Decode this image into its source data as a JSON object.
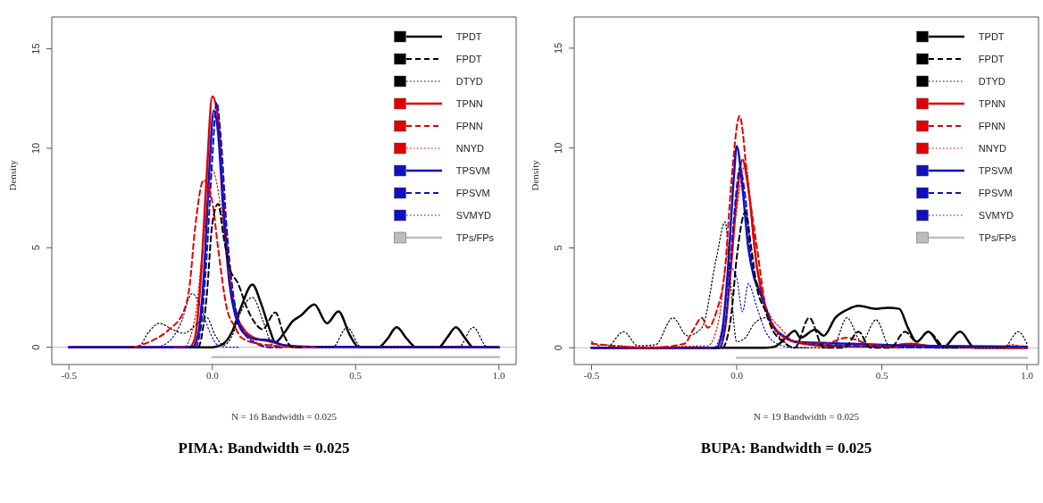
{
  "chart_data": [
    {
      "type": "line",
      "title": "PIMA: Bandwidth = 0.025",
      "xlabel": "N = 16  Bandwidth = 0.025",
      "ylabel": "Density",
      "xlim": [
        -0.56,
        1.06
      ],
      "ylim": [
        -0.87,
        16.6
      ],
      "xticks": [
        {
          "value": -0.5,
          "label": "-0.5"
        },
        {
          "value": 0,
          "label": "0.0"
        },
        {
          "value": 0.5,
          "label": "0.5"
        },
        {
          "value": 1,
          "label": "1.0"
        }
      ],
      "yticks": [
        0,
        5,
        10,
        15
      ],
      "grid": false,
      "legend": "top right",
      "ref_lines": [
        {
          "axis": "y",
          "value": 0,
          "label": null,
          "color": "#bdbdbd"
        }
      ],
      "series": [
        {
          "name": "TPDT",
          "color": "#000000",
          "line_style": "solid",
          "x": [
            -0.5,
            0,
            0.03,
            0.07,
            0.1,
            0.14,
            0.17,
            0.2,
            0.22,
            0.25,
            0.28,
            0.31,
            0.356,
            0.4,
            0.44,
            0.48,
            0.51,
            0.58,
            0.61,
            0.643,
            0.68,
            0.71,
            0.79,
            0.82,
            0.85,
            0.88,
            0.91,
            1.0
          ],
          "values": [
            0,
            0,
            0.1,
            0.8,
            2.0,
            3.15,
            2.2,
            0.9,
            0.25,
            0.7,
            1.3,
            1.6,
            2.15,
            1.2,
            1.8,
            0.6,
            0.02,
            0,
            0.4,
            1.0,
            0.4,
            0,
            0,
            0.5,
            1.0,
            0.5,
            0,
            0
          ]
        },
        {
          "name": "FPDT",
          "color": "#000000",
          "line_style": "dashed",
          "x": [
            -0.08,
            -0.05,
            -0.02,
            0,
            0.02,
            0.04,
            0.06,
            0.09,
            0.12,
            0.15,
            0.175,
            0.22,
            0.25,
            0.28,
            0.31
          ],
          "values": [
            0,
            0,
            2.5,
            6.2,
            7.2,
            5.5,
            4.0,
            3.2,
            2.0,
            1.2,
            0.9,
            1.75,
            0.6,
            0,
            0
          ]
        },
        {
          "name": "DTYD",
          "color": "#000000",
          "line_style": "dotted",
          "x": [
            -0.29,
            -0.26,
            -0.22,
            -0.185,
            -0.14,
            -0.1,
            -0.05,
            -0.02,
            0.01,
            0.04,
            0.07,
            0.1,
            0.14,
            0.18,
            0.21,
            0.24,
            0.42,
            0.47,
            0.52,
            0.86,
            0.91,
            0.96,
            0.99
          ],
          "values": [
            0,
            0,
            0.8,
            1.2,
            0.9,
            0.7,
            1.2,
            1.5,
            0.6,
            0.1,
            0.6,
            1.8,
            2.5,
            1.2,
            0.1,
            0,
            0,
            1.0,
            0,
            0,
            1.0,
            0,
            0
          ]
        },
        {
          "name": "TPNN",
          "color": "#e00000",
          "line_style": "solid",
          "x": [
            -0.5,
            -0.08,
            -0.06,
            -0.04,
            -0.02,
            0,
            0.02,
            0.04,
            0.06,
            0.08,
            0.11,
            0.15,
            0.2,
            0.25,
            0.3,
            1.0
          ],
          "values": [
            0,
            0,
            0.5,
            3.5,
            8.5,
            12.6,
            11.5,
            7,
            3.5,
            1.8,
            0.9,
            0.45,
            0.3,
            0.1,
            0.02,
            0
          ]
        },
        {
          "name": "FPNN",
          "color": "#e00000",
          "line_style": "dashed",
          "x": [
            -0.27,
            -0.25,
            -0.2,
            -0.15,
            -0.1,
            -0.08,
            -0.06,
            -0.03,
            0,
            0.02,
            0.05,
            0.08,
            0.1,
            0.15,
            0.2,
            0.3,
            0.36
          ],
          "values": [
            0,
            0.1,
            0.4,
            0.9,
            1.8,
            3.0,
            6.0,
            8.4,
            7.3,
            5.0,
            2.0,
            1.0,
            0.5,
            0.2,
            0.1,
            0,
            0
          ]
        },
        {
          "name": "NNYD",
          "color": "#e00000",
          "line_style": "dotted",
          "x": [
            -0.13,
            -0.1,
            -0.06,
            -0.03,
            0,
            0.03,
            0.06,
            0.09,
            0.12,
            0.16,
            0.2,
            0.24
          ],
          "values": [
            0,
            0,
            1.5,
            5.5,
            8.9,
            7.0,
            3.5,
            1.5,
            0.6,
            0.2,
            0,
            0
          ]
        },
        {
          "name": "TPSVM",
          "color": "#1010c0",
          "line_style": "solid",
          "x": [
            -0.5,
            -0.07,
            -0.05,
            -0.03,
            -0.01,
            0.005,
            0.02,
            0.04,
            0.06,
            0.08,
            0.1,
            0.13,
            0.15,
            0.2,
            0.25,
            0.35,
            1.0
          ],
          "values": [
            0,
            0,
            0.6,
            3.5,
            9.0,
            11.9,
            10.8,
            6.5,
            3.2,
            1.6,
            0.9,
            0.5,
            0.4,
            0.35,
            0.1,
            0.02,
            0
          ]
        },
        {
          "name": "FPSVM",
          "color": "#1010c0",
          "line_style": "dashed",
          "x": [
            -0.09,
            -0.06,
            -0.04,
            -0.02,
            0,
            0.015,
            0.03,
            0.05,
            0.07,
            0.1,
            0.15,
            0.2,
            0.24
          ],
          "values": [
            0,
            0,
            1.0,
            4.5,
            9.5,
            12.3,
            10.5,
            6.0,
            3.0,
            1.0,
            0.2,
            0,
            0
          ]
        },
        {
          "name": "SVMYD",
          "color": "#1010c0",
          "line_style": "dotted",
          "x": [
            -0.24,
            -0.2,
            -0.15,
            -0.11,
            -0.07,
            -0.04,
            -0.01,
            0.02,
            0.05,
            0.09
          ],
          "values": [
            0,
            0,
            0.3,
            1.2,
            2.7,
            2.0,
            0.8,
            0.1,
            0,
            0
          ]
        },
        {
          "name": "TPs/FPs",
          "color": "#bdbdbd",
          "line_style": "solid",
          "x": [
            0,
            1.0
          ],
          "values": [
            -0.5,
            -0.5
          ]
        }
      ]
    },
    {
      "type": "line",
      "title": "BUPA: Bandwidth = 0.025",
      "xlabel": "N = 19  Bandwidth = 0.025",
      "ylabel": "Density",
      "xlim": [
        -0.56,
        1.04
      ],
      "ylim": [
        -0.84,
        16.56
      ],
      "xticks": [
        {
          "value": -0.5,
          "label": "-0.5"
        },
        {
          "value": 0,
          "label": "0.0"
        },
        {
          "value": 0.5,
          "label": "0.5"
        },
        {
          "value": 1,
          "label": "1.0"
        }
      ],
      "yticks": [
        0,
        5,
        10,
        15
      ],
      "grid": false,
      "legend": "top right",
      "ref_lines": [
        {
          "axis": "y",
          "value": 0,
          "label": null,
          "color": "#bdbdbd"
        }
      ],
      "series": [
        {
          "name": "TPDT",
          "color": "#000000",
          "line_style": "solid",
          "x": [
            -0.5,
            0.1,
            0.13,
            0.17,
            0.2,
            0.22,
            0.27,
            0.3,
            0.34,
            0.38,
            0.42,
            0.48,
            0.52,
            0.56,
            0.59,
            0.62,
            0.66,
            0.71,
            0.77,
            0.82,
            1.0
          ],
          "values": [
            0,
            0,
            0.05,
            0.5,
            0.85,
            0.5,
            0.9,
            0.6,
            1.5,
            1.9,
            2.1,
            1.95,
            2.0,
            1.95,
            1.0,
            0.3,
            0.8,
            0,
            0.8,
            0,
            0
          ]
        },
        {
          "name": "FPDT",
          "color": "#000000",
          "line_style": "dashed",
          "x": [
            -0.08,
            -0.05,
            -0.02,
            0,
            0.03,
            0.05,
            0.07,
            0.1,
            0.12,
            0.16,
            0.2,
            0.25,
            0.3,
            0.37,
            0.42,
            0.46,
            0.53,
            0.58,
            0.62,
            0.66,
            0.72,
            0.76
          ],
          "values": [
            0,
            0,
            1.5,
            4.5,
            6.8,
            5.0,
            3.0,
            1.8,
            1.0,
            0.3,
            0,
            1.5,
            0,
            0,
            0.8,
            0,
            0,
            0.8,
            0.3,
            0.8,
            0,
            0
          ]
        },
        {
          "name": "DTYD",
          "color": "#000000",
          "line_style": "dotted",
          "x": [
            -0.5,
            -0.45,
            -0.39,
            -0.34,
            -0.28,
            -0.22,
            -0.17,
            -0.12,
            -0.07,
            -0.04,
            -0.02,
            0.0,
            0.03,
            0.06,
            0.1,
            0.15,
            0.2,
            0.33,
            0.38,
            0.43,
            0.48,
            0.53,
            0.6,
            0.92,
            0.97,
            1.0
          ],
          "values": [
            0.3,
            0,
            0.8,
            0.1,
            0.15,
            1.5,
            0.6,
            1.0,
            4.5,
            6.3,
            3.0,
            0.3,
            0.5,
            1.2,
            1.5,
            0.5,
            0,
            0,
            1.5,
            0.3,
            1.4,
            0,
            0,
            0,
            0.8,
            0.2
          ]
        },
        {
          "name": "TPNN",
          "color": "#e00000",
          "line_style": "solid",
          "x": [
            -0.5,
            -0.06,
            -0.04,
            -0.02,
            0,
            0.02,
            0.04,
            0.07,
            0.1,
            0.13,
            0.2,
            0.3,
            0.5,
            0.6,
            0.7,
            1.0
          ],
          "values": [
            0,
            0,
            1.0,
            4.0,
            7.5,
            9.4,
            8.0,
            4.0,
            2.0,
            1.0,
            0.3,
            0.1,
            0.05,
            0.2,
            0.02,
            0
          ]
        },
        {
          "name": "FPNN",
          "color": "#e00000",
          "line_style": "dashed",
          "x": [
            -0.5,
            -0.3,
            -0.18,
            -0.15,
            -0.12,
            -0.1,
            -0.07,
            -0.04,
            -0.02,
            0.01,
            0.04,
            0.07,
            0.1,
            0.13,
            0.2,
            0.3,
            0.38,
            0.45,
            0.5,
            0.56
          ],
          "values": [
            0.2,
            0,
            0.2,
            0.9,
            1.5,
            1.0,
            1.8,
            4.0,
            8.0,
            11.6,
            8.0,
            5.0,
            2.0,
            1.0,
            0.3,
            0.2,
            0.5,
            0.2,
            0.1,
            0
          ]
        },
        {
          "name": "NNYD",
          "color": "#e00000",
          "line_style": "dotted",
          "x": [
            -0.46,
            -0.3,
            -0.1,
            -0.06,
            -0.04,
            -0.01,
            0.03,
            0.06,
            0.09,
            0.12,
            0.15,
            0.2,
            0.3,
            0.9,
            0.95,
            0.99
          ],
          "values": [
            0.15,
            0.05,
            0.1,
            1.5,
            4.0,
            6.0,
            9.2,
            5.0,
            2.5,
            1.5,
            1.0,
            0.3,
            0.1,
            0,
            0.15,
            0
          ]
        },
        {
          "name": "TPSVM",
          "color": "#1010c0",
          "line_style": "solid",
          "x": [
            -0.5,
            -0.07,
            -0.05,
            -0.03,
            -0.01,
            0,
            0.02,
            0.04,
            0.06,
            0.08,
            0.1,
            0.12,
            0.16,
            0.2,
            0.4,
            0.6,
            1.0
          ],
          "values": [
            0,
            0,
            0.8,
            4.0,
            8.5,
            10.1,
            8.0,
            5.0,
            3.5,
            2.8,
            2.0,
            1.2,
            0.6,
            0.3,
            0.2,
            0.1,
            0.05
          ]
        },
        {
          "name": "FPSVM",
          "color": "#1010c0",
          "line_style": "dashed",
          "x": [
            -0.09,
            -0.06,
            -0.04,
            -0.02,
            0,
            0.01,
            0.03,
            0.05,
            0.08,
            0.1,
            0.13,
            0.18,
            0.25,
            0.5,
            0.7
          ],
          "values": [
            0,
            0,
            1.0,
            4.5,
            8.0,
            9.0,
            7.5,
            4.5,
            2.8,
            2.0,
            1.0,
            0.4,
            0.2,
            0.05,
            0
          ]
        },
        {
          "name": "SVMYD",
          "color": "#1010c0",
          "line_style": "dotted",
          "x": [
            -0.11,
            -0.08,
            -0.05,
            -0.02,
            0,
            0.02,
            0.04,
            0.07,
            0.1,
            0.14,
            0.2,
            0.24
          ],
          "values": [
            0,
            0,
            1.0,
            4.0,
            3.5,
            1.8,
            3.2,
            2.0,
            0.8,
            0.2,
            0,
            0
          ]
        },
        {
          "name": "TPs/FPs",
          "color": "#bdbdbd",
          "line_style": "solid",
          "x": [
            0,
            1.0
          ],
          "values": [
            -0.5,
            -0.5
          ]
        }
      ]
    }
  ]
}
